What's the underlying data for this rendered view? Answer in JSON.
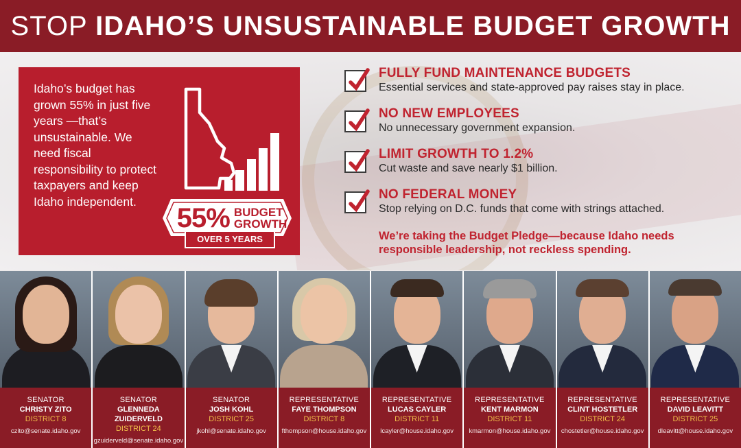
{
  "header": {
    "light": "STOP",
    "bold": "IDAHO’S UNSUSTAINABLE BUDGET GROWTH"
  },
  "lead": "Idaho’s budget has grown 55% in just five years —that’s unsustainable. We need fiscal responsibility to protect taxpayers and keep Idaho independent.",
  "badge": {
    "percent": "55%",
    "line1": "BUDGET",
    "line2": "GROWTH",
    "sub": "OVER 5 YEARS"
  },
  "checklist": [
    {
      "title": "FULLY FUND MAINTENANCE BUDGETS",
      "desc": "Essential services and state-approved pay raises stay in place."
    },
    {
      "title": "NO NEW EMPLOYEES",
      "desc": "No unnecessary government expansion."
    },
    {
      "title": "LIMIT GROWTH TO 1.2%",
      "desc": "Cut waste and save nearly $1 billion."
    },
    {
      "title": "NO FEDERAL MONEY",
      "desc": "Stop relying on D.C. funds that come with strings attached."
    }
  ],
  "pledge": "We’re taking the Budget Pledge—because Idaho needs responsible leadership, not reckless spending.",
  "people": [
    {
      "role": "SENATOR",
      "name": "CHRISTY ZITO",
      "district": "DISTRICT 8",
      "email": "czito@senate.idaho.gov"
    },
    {
      "role": "SENATOR",
      "name": "GLENNEDA ZUIDERVELD",
      "district": "DISTRICT 24",
      "email": "gzuiderveld@senate.idaho.gov"
    },
    {
      "role": "SENATOR",
      "name": "JOSH KOHL",
      "district": "DISTRICT 25",
      "email": "jkohl@senate.idaho.gov"
    },
    {
      "role": "REPRESENTATIVE",
      "name": "FAYE THOMPSON",
      "district": "DISTRICT 8",
      "email": "fthompson@house.idaho.gov"
    },
    {
      "role": "REPRESENTATIVE",
      "name": "LUCAS CAYLER",
      "district": "DISTRICT 11",
      "email": "lcayler@house.idaho.gov"
    },
    {
      "role": "REPRESENTATIVE",
      "name": "KENT MARMON",
      "district": "DISTRICT 11",
      "email": "kmarmon@house.idaho.gov"
    },
    {
      "role": "REPRESENTATIVE",
      "name": "CLINT HOSTETLER",
      "district": "DISTRICT 24",
      "email": "chostetler@house.idaho.gov"
    },
    {
      "role": "REPRESENTATIVE",
      "name": "DAVID LEAVITT",
      "district": "DISTRICT 25",
      "email": "dleavitt@house.idaho.gov"
    }
  ],
  "colors": {
    "brand_red": "#b81e2d",
    "dark_red": "#8a1c26",
    "gold": "#f2c04a"
  }
}
